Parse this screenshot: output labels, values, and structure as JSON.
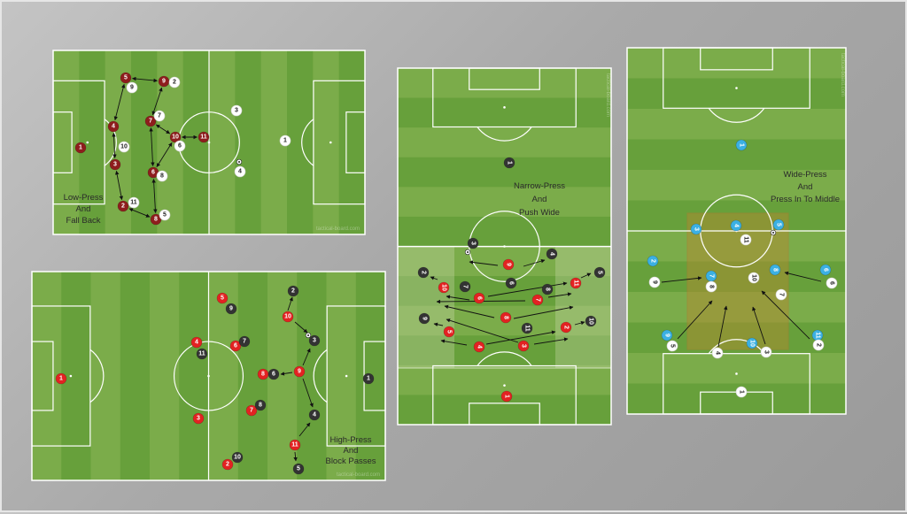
{
  "colors": {
    "stripe_light": "#7bac4a",
    "stripe_dark": "#67a03b",
    "line": "#ffffff",
    "dark_red": "#8e1d1d",
    "red": "#e32222",
    "black": "#333333",
    "white": "#ffffff",
    "blue": "#3bb0e3",
    "zone_highlight": "#c8d8a8",
    "press_box": "#c0702a"
  },
  "watermark": "tactical-board.com",
  "pitches": [
    {
      "id": "low-press",
      "orientation": "horizontal",
      "caption": [
        "Low-Press",
        "And",
        "Fall Back"
      ],
      "players": [
        {
          "number": "5",
          "team": "dark_red"
        },
        {
          "number": "9",
          "team": "dark_red"
        },
        {
          "number": "4",
          "team": "dark_red"
        },
        {
          "number": "1",
          "team": "dark_red"
        },
        {
          "number": "3",
          "team": "dark_red"
        },
        {
          "number": "2",
          "team": "dark_red"
        },
        {
          "number": "7",
          "team": "dark_red"
        },
        {
          "number": "10",
          "team": "dark_red"
        },
        {
          "number": "11",
          "team": "dark_red"
        },
        {
          "number": "6",
          "team": "dark_red"
        },
        {
          "number": "8",
          "team": "dark_red"
        },
        {
          "number": "9",
          "team": "white"
        },
        {
          "number": "2",
          "team": "white"
        },
        {
          "number": "7",
          "team": "white"
        },
        {
          "number": "10",
          "team": "white"
        },
        {
          "number": "6",
          "team": "white"
        },
        {
          "number": "8",
          "team": "white"
        },
        {
          "number": "11",
          "team": "white"
        },
        {
          "number": "5",
          "team": "white"
        },
        {
          "number": "3",
          "team": "white"
        },
        {
          "number": "1",
          "team": "white"
        },
        {
          "number": "4",
          "team": "white"
        }
      ]
    },
    {
      "id": "high-press",
      "orientation": "horizontal",
      "caption": [
        "High-Press",
        "And",
        "Block Passes"
      ],
      "players": [
        {
          "number": "1",
          "team": "red"
        },
        {
          "number": "5",
          "team": "red"
        },
        {
          "number": "4",
          "team": "red"
        },
        {
          "number": "6",
          "team": "red"
        },
        {
          "number": "3",
          "team": "red"
        },
        {
          "number": "7",
          "team": "red"
        },
        {
          "number": "8",
          "team": "red"
        },
        {
          "number": "10",
          "team": "red"
        },
        {
          "number": "9",
          "team": "red"
        },
        {
          "number": "11",
          "team": "red"
        },
        {
          "number": "2",
          "team": "red"
        },
        {
          "number": "2",
          "team": "black"
        },
        {
          "number": "9",
          "team": "black"
        },
        {
          "number": "7",
          "team": "black"
        },
        {
          "number": "11",
          "team": "black"
        },
        {
          "number": "3",
          "team": "black"
        },
        {
          "number": "6",
          "team": "black"
        },
        {
          "number": "1",
          "team": "black"
        },
        {
          "number": "8",
          "team": "black"
        },
        {
          "number": "4",
          "team": "black"
        },
        {
          "number": "10",
          "team": "black"
        },
        {
          "number": "5",
          "team": "black"
        }
      ]
    },
    {
      "id": "narrow-press",
      "orientation": "vertical",
      "caption": [
        "Narrow-Press",
        "And",
        "Push Wide"
      ],
      "players": [
        {
          "number": "9",
          "team": "red"
        },
        {
          "number": "10",
          "team": "red"
        },
        {
          "number": "6",
          "team": "red"
        },
        {
          "number": "7",
          "team": "red"
        },
        {
          "number": "11",
          "team": "red"
        },
        {
          "number": "8",
          "team": "red"
        },
        {
          "number": "5",
          "team": "red"
        },
        {
          "number": "4",
          "team": "red"
        },
        {
          "number": "3",
          "team": "red"
        },
        {
          "number": "2",
          "team": "red"
        },
        {
          "number": "1",
          "team": "red"
        },
        {
          "number": "3",
          "team": "black"
        },
        {
          "number": "4",
          "team": "black"
        },
        {
          "number": "2",
          "team": "black"
        },
        {
          "number": "7",
          "team": "black"
        },
        {
          "number": "6",
          "team": "black"
        },
        {
          "number": "8",
          "team": "black"
        },
        {
          "number": "5",
          "team": "black"
        },
        {
          "number": "9",
          "team": "black"
        },
        {
          "number": "11",
          "team": "black"
        },
        {
          "number": "10",
          "team": "black"
        },
        {
          "number": "1",
          "team": "black"
        }
      ]
    },
    {
      "id": "wide-press",
      "orientation": "vertical",
      "caption": [
        "Wide-Press",
        "And",
        "Press In To Middle"
      ],
      "players": [
        {
          "number": "1",
          "team": "blue"
        },
        {
          "number": "3",
          "team": "blue"
        },
        {
          "number": "4",
          "team": "blue"
        },
        {
          "number": "5",
          "team": "blue"
        },
        {
          "number": "2",
          "team": "blue"
        },
        {
          "number": "7",
          "team": "blue"
        },
        {
          "number": "8",
          "team": "blue"
        },
        {
          "number": "6",
          "team": "blue"
        },
        {
          "number": "9",
          "team": "blue"
        },
        {
          "number": "10",
          "team": "blue"
        },
        {
          "number": "11",
          "team": "blue"
        },
        {
          "number": "11",
          "team": "white"
        },
        {
          "number": "9",
          "team": "white"
        },
        {
          "number": "8",
          "team": "white"
        },
        {
          "number": "10",
          "team": "white"
        },
        {
          "number": "6",
          "team": "white"
        },
        {
          "number": "7",
          "team": "white"
        },
        {
          "number": "5",
          "team": "white"
        },
        {
          "number": "4",
          "team": "white"
        },
        {
          "number": "3",
          "team": "white"
        },
        {
          "number": "2",
          "team": "white"
        },
        {
          "number": "1",
          "team": "white"
        }
      ]
    }
  ]
}
